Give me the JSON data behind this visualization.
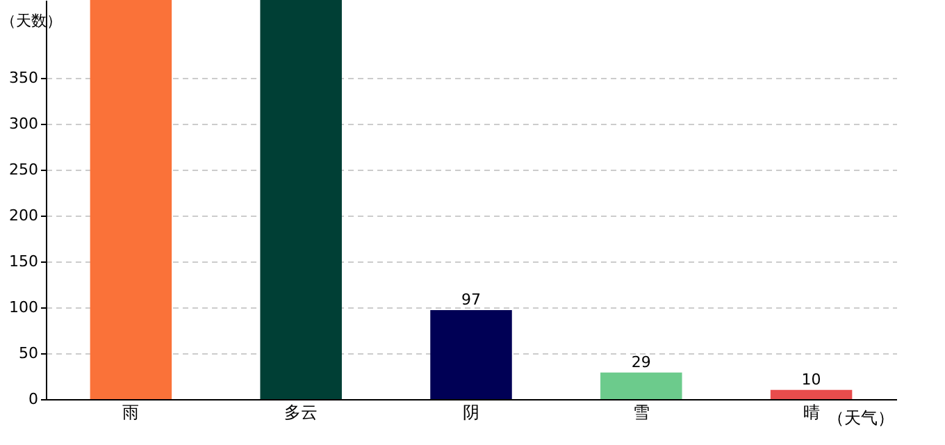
{
  "chart_data": {
    "type": "bar",
    "xlabel": "（天气）",
    "ylabel": "（天数）",
    "categories": [
      "雨",
      "多云",
      "阴",
      "雪",
      "晴"
    ],
    "values": [
      435,
      435,
      97,
      29,
      10
    ],
    "colors": [
      "#fa7239",
      "#003f35",
      "#000055",
      "#6ccb8c",
      "#e84c4c"
    ],
    "value_labels": [
      null,
      null,
      "97",
      "29",
      "10"
    ],
    "ylim": [
      0,
      435
    ],
    "yticks": [
      0,
      50,
      100,
      150,
      200,
      250,
      300,
      350
    ],
    "grid": "y"
  }
}
